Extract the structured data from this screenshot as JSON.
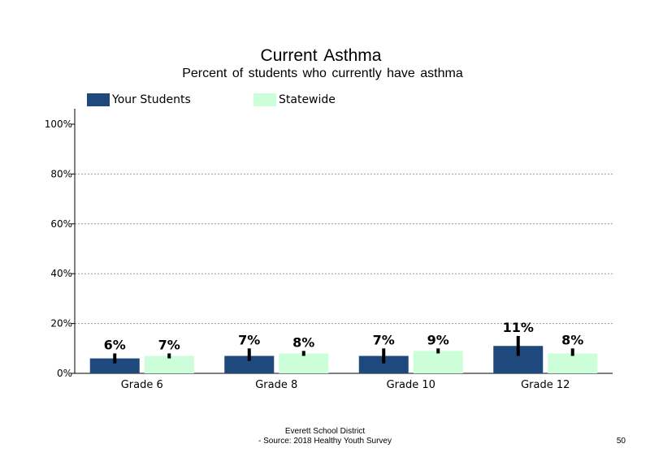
{
  "chart_data": {
    "type": "bar",
    "title": "Current  Asthma",
    "subtitle": "Percent of students  who currently have  asthma",
    "categories": [
      "Grade 6",
      "Grade 8",
      "Grade 10",
      "Grade 12"
    ],
    "series": [
      {
        "name": "Your Students",
        "color": "#1f497d",
        "values": [
          6,
          7,
          7,
          11
        ],
        "labels": [
          "6%",
          "7%",
          "7%",
          "11%"
        ],
        "error": [
          [
            4,
            8
          ],
          [
            5,
            10
          ],
          [
            4,
            10
          ],
          [
            7,
            15
          ]
        ]
      },
      {
        "name": "Statewide",
        "color": "#ccffd9",
        "values": [
          7,
          8,
          9,
          8
        ],
        "labels": [
          "7%",
          "8%",
          "9%",
          "8%"
        ],
        "error": [
          [
            6,
            8
          ],
          [
            7,
            9
          ],
          [
            8,
            10
          ],
          [
            7,
            10
          ]
        ]
      }
    ],
    "ylim": [
      0,
      100
    ],
    "yticks": [
      "0%",
      "20%",
      "40%",
      "60%",
      "80%",
      "100%"
    ],
    "ytick_values": [
      0,
      20,
      40,
      60,
      80,
      100
    ],
    "grid": true,
    "legend_position": "top-left"
  },
  "footer": {
    "district": "Everett  School  District",
    "source": "- Source: 2018 Healthy  Youth Survey",
    "page_number": "50"
  }
}
